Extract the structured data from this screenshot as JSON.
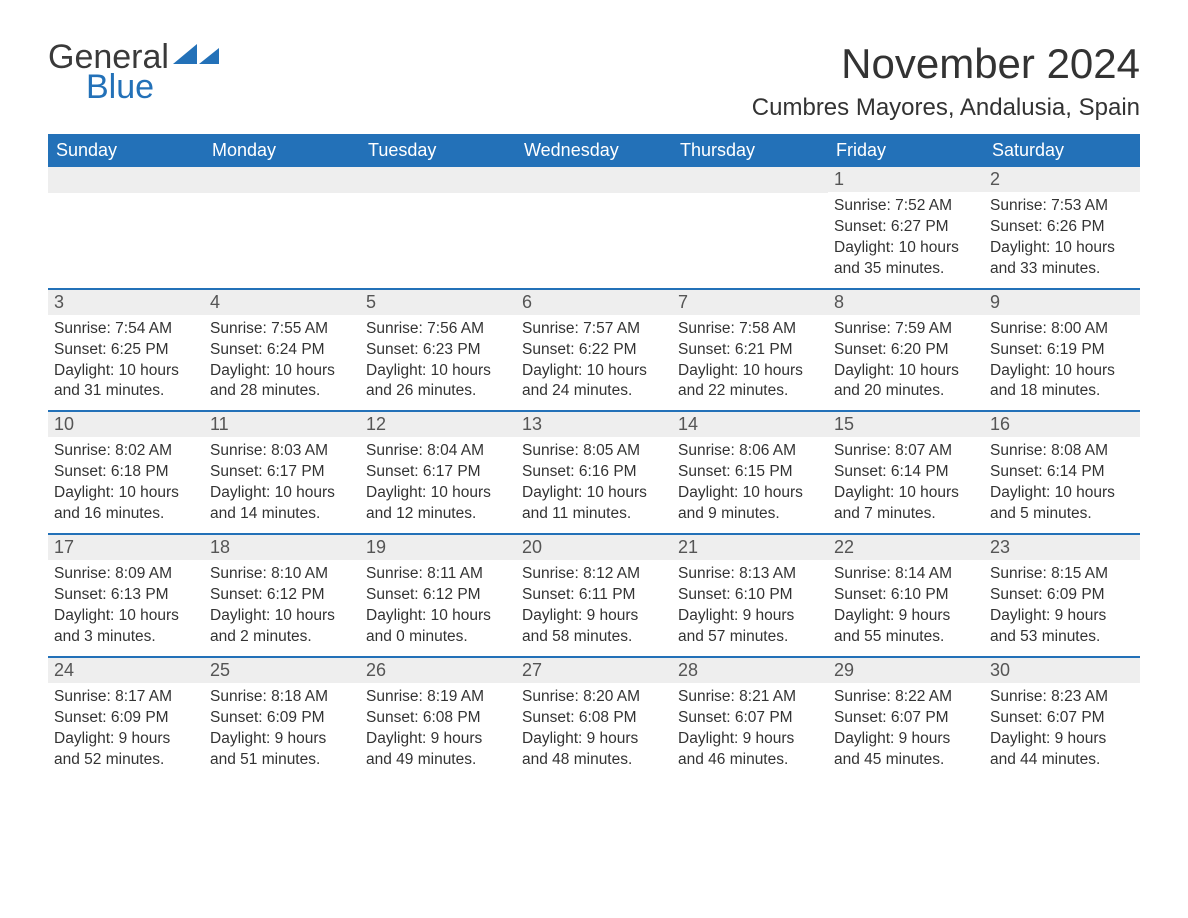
{
  "brand": {
    "text1": "General",
    "text2": "Blue"
  },
  "title": "November 2024",
  "location": "Cumbres Mayores, Andalusia, Spain",
  "colors": {
    "header_bg": "#2371b8",
    "header_text": "#ffffff",
    "daynum_bg": "#eeeeee",
    "week_border": "#2371b8",
    "body_text": "#333333",
    "logo_gray": "#3a3a3a",
    "logo_blue": "#2371b8",
    "page_bg": "#ffffff"
  },
  "typography": {
    "title_fontsize": 42,
    "location_fontsize": 24,
    "dayheader_fontsize": 18,
    "daynum_fontsize": 18,
    "cell_fontsize": 15.5
  },
  "calendar": {
    "type": "table",
    "columns": [
      "Sunday",
      "Monday",
      "Tuesday",
      "Wednesday",
      "Thursday",
      "Friday",
      "Saturday"
    ],
    "weeks": [
      [
        {
          "day": "",
          "sunrise": "",
          "sunset": "",
          "daylight": ""
        },
        {
          "day": "",
          "sunrise": "",
          "sunset": "",
          "daylight": ""
        },
        {
          "day": "",
          "sunrise": "",
          "sunset": "",
          "daylight": ""
        },
        {
          "day": "",
          "sunrise": "",
          "sunset": "",
          "daylight": ""
        },
        {
          "day": "",
          "sunrise": "",
          "sunset": "",
          "daylight": ""
        },
        {
          "day": "1",
          "sunrise": "Sunrise: 7:52 AM",
          "sunset": "Sunset: 6:27 PM",
          "daylight": "Daylight: 10 hours and 35 minutes."
        },
        {
          "day": "2",
          "sunrise": "Sunrise: 7:53 AM",
          "sunset": "Sunset: 6:26 PM",
          "daylight": "Daylight: 10 hours and 33 minutes."
        }
      ],
      [
        {
          "day": "3",
          "sunrise": "Sunrise: 7:54 AM",
          "sunset": "Sunset: 6:25 PM",
          "daylight": "Daylight: 10 hours and 31 minutes."
        },
        {
          "day": "4",
          "sunrise": "Sunrise: 7:55 AM",
          "sunset": "Sunset: 6:24 PM",
          "daylight": "Daylight: 10 hours and 28 minutes."
        },
        {
          "day": "5",
          "sunrise": "Sunrise: 7:56 AM",
          "sunset": "Sunset: 6:23 PM",
          "daylight": "Daylight: 10 hours and 26 minutes."
        },
        {
          "day": "6",
          "sunrise": "Sunrise: 7:57 AM",
          "sunset": "Sunset: 6:22 PM",
          "daylight": "Daylight: 10 hours and 24 minutes."
        },
        {
          "day": "7",
          "sunrise": "Sunrise: 7:58 AM",
          "sunset": "Sunset: 6:21 PM",
          "daylight": "Daylight: 10 hours and 22 minutes."
        },
        {
          "day": "8",
          "sunrise": "Sunrise: 7:59 AM",
          "sunset": "Sunset: 6:20 PM",
          "daylight": "Daylight: 10 hours and 20 minutes."
        },
        {
          "day": "9",
          "sunrise": "Sunrise: 8:00 AM",
          "sunset": "Sunset: 6:19 PM",
          "daylight": "Daylight: 10 hours and 18 minutes."
        }
      ],
      [
        {
          "day": "10",
          "sunrise": "Sunrise: 8:02 AM",
          "sunset": "Sunset: 6:18 PM",
          "daylight": "Daylight: 10 hours and 16 minutes."
        },
        {
          "day": "11",
          "sunrise": "Sunrise: 8:03 AM",
          "sunset": "Sunset: 6:17 PM",
          "daylight": "Daylight: 10 hours and 14 minutes."
        },
        {
          "day": "12",
          "sunrise": "Sunrise: 8:04 AM",
          "sunset": "Sunset: 6:17 PM",
          "daylight": "Daylight: 10 hours and 12 minutes."
        },
        {
          "day": "13",
          "sunrise": "Sunrise: 8:05 AM",
          "sunset": "Sunset: 6:16 PM",
          "daylight": "Daylight: 10 hours and 11 minutes."
        },
        {
          "day": "14",
          "sunrise": "Sunrise: 8:06 AM",
          "sunset": "Sunset: 6:15 PM",
          "daylight": "Daylight: 10 hours and 9 minutes."
        },
        {
          "day": "15",
          "sunrise": "Sunrise: 8:07 AM",
          "sunset": "Sunset: 6:14 PM",
          "daylight": "Daylight: 10 hours and 7 minutes."
        },
        {
          "day": "16",
          "sunrise": "Sunrise: 8:08 AM",
          "sunset": "Sunset: 6:14 PM",
          "daylight": "Daylight: 10 hours and 5 minutes."
        }
      ],
      [
        {
          "day": "17",
          "sunrise": "Sunrise: 8:09 AM",
          "sunset": "Sunset: 6:13 PM",
          "daylight": "Daylight: 10 hours and 3 minutes."
        },
        {
          "day": "18",
          "sunrise": "Sunrise: 8:10 AM",
          "sunset": "Sunset: 6:12 PM",
          "daylight": "Daylight: 10 hours and 2 minutes."
        },
        {
          "day": "19",
          "sunrise": "Sunrise: 8:11 AM",
          "sunset": "Sunset: 6:12 PM",
          "daylight": "Daylight: 10 hours and 0 minutes."
        },
        {
          "day": "20",
          "sunrise": "Sunrise: 8:12 AM",
          "sunset": "Sunset: 6:11 PM",
          "daylight": "Daylight: 9 hours and 58 minutes."
        },
        {
          "day": "21",
          "sunrise": "Sunrise: 8:13 AM",
          "sunset": "Sunset: 6:10 PM",
          "daylight": "Daylight: 9 hours and 57 minutes."
        },
        {
          "day": "22",
          "sunrise": "Sunrise: 8:14 AM",
          "sunset": "Sunset: 6:10 PM",
          "daylight": "Daylight: 9 hours and 55 minutes."
        },
        {
          "day": "23",
          "sunrise": "Sunrise: 8:15 AM",
          "sunset": "Sunset: 6:09 PM",
          "daylight": "Daylight: 9 hours and 53 minutes."
        }
      ],
      [
        {
          "day": "24",
          "sunrise": "Sunrise: 8:17 AM",
          "sunset": "Sunset: 6:09 PM",
          "daylight": "Daylight: 9 hours and 52 minutes."
        },
        {
          "day": "25",
          "sunrise": "Sunrise: 8:18 AM",
          "sunset": "Sunset: 6:09 PM",
          "daylight": "Daylight: 9 hours and 51 minutes."
        },
        {
          "day": "26",
          "sunrise": "Sunrise: 8:19 AM",
          "sunset": "Sunset: 6:08 PM",
          "daylight": "Daylight: 9 hours and 49 minutes."
        },
        {
          "day": "27",
          "sunrise": "Sunrise: 8:20 AM",
          "sunset": "Sunset: 6:08 PM",
          "daylight": "Daylight: 9 hours and 48 minutes."
        },
        {
          "day": "28",
          "sunrise": "Sunrise: 8:21 AM",
          "sunset": "Sunset: 6:07 PM",
          "daylight": "Daylight: 9 hours and 46 minutes."
        },
        {
          "day": "29",
          "sunrise": "Sunrise: 8:22 AM",
          "sunset": "Sunset: 6:07 PM",
          "daylight": "Daylight: 9 hours and 45 minutes."
        },
        {
          "day": "30",
          "sunrise": "Sunrise: 8:23 AM",
          "sunset": "Sunset: 6:07 PM",
          "daylight": "Daylight: 9 hours and 44 minutes."
        }
      ]
    ]
  }
}
